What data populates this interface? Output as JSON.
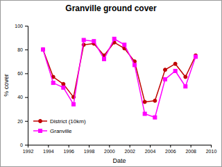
{
  "chart_data": {
    "type": "line",
    "title": "Granville ground cover",
    "x_label": "Date",
    "y_label": "% cover",
    "x": [
      1993.5,
      1994.5,
      1995.5,
      1996.5,
      1997.5,
      1998.5,
      1999.5,
      2000.5,
      2001.5,
      2002.5,
      2003.5,
      2004.5,
      2005.5,
      2006.5,
      2007.5,
      2008.5
    ],
    "series": [
      {
        "name": "District (10km)",
        "color": "#c00000",
        "marker": "circle",
        "values": [
          80,
          57,
          51,
          40,
          84,
          85,
          75,
          86,
          81,
          70,
          36,
          37,
          63,
          68,
          57,
          75
        ]
      },
      {
        "name": "Granville",
        "color": "#ff00ff",
        "marker": "square",
        "values": [
          80,
          52,
          48,
          34,
          88,
          87,
          72,
          89,
          84,
          67,
          26,
          23,
          55,
          62,
          49,
          74
        ]
      }
    ],
    "xlim": [
      1992,
      2010
    ],
    "xticks": [
      1992,
      1994,
      1996,
      1998,
      2000,
      2002,
      2004,
      2006,
      2008,
      2010
    ],
    "ylim": [
      0,
      100
    ],
    "yticks": [
      0,
      20,
      40,
      60,
      80,
      100
    ],
    "grid": false,
    "legend": "lower left"
  }
}
